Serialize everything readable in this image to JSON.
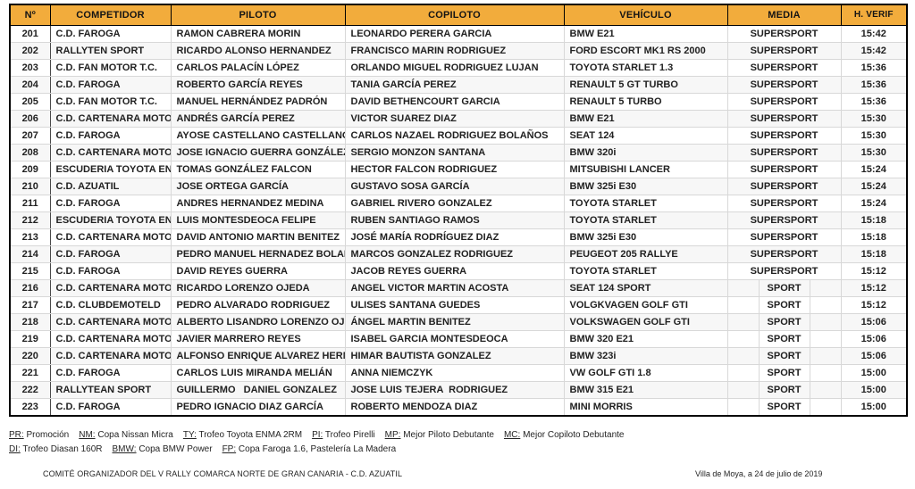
{
  "table": {
    "columns": [
      {
        "key": "num",
        "label": "Nº"
      },
      {
        "key": "competidor",
        "label": "COMPETIDOR"
      },
      {
        "key": "piloto",
        "label": "PILOTO"
      },
      {
        "key": "copiloto",
        "label": "COPILOTO"
      },
      {
        "key": "vehiculo",
        "label": "VEHÍCULO"
      },
      {
        "key": "media",
        "label": "MEDIA"
      },
      {
        "key": "h_verif",
        "label": "H. VERIF"
      }
    ],
    "rows": [
      {
        "num": "201",
        "competidor": "C.D. FAROGA",
        "piloto": "RAMON CABRERA MORIN",
        "copiloto": "LEONARDO PERERA GARCIA",
        "vehiculo": "BMW E21",
        "media": "SUPERSPORT",
        "h_verif": "15:42"
      },
      {
        "num": "202",
        "competidor": "RALLYTEN SPORT",
        "piloto": "RICARDO ALONSO HERNANDEZ",
        "copiloto": "FRANCISCO MARIN RODRIGUEZ",
        "vehiculo": "FORD ESCORT MK1 RS 2000",
        "media": "SUPERSPORT",
        "h_verif": "15:42"
      },
      {
        "num": "203",
        "competidor": "C.D. FAN MOTOR T.C.",
        "piloto": "CARLOS PALACÍN LÓPEZ",
        "copiloto": "ORLANDO MIGUEL RODRIGUEZ LUJAN",
        "vehiculo": "TOYOTA STARLET 1.3",
        "media": "SUPERSPORT",
        "h_verif": "15:36"
      },
      {
        "num": "204",
        "competidor": "C.D. FAROGA",
        "piloto": "ROBERTO GARCÍA REYES",
        "copiloto": "TANIA GARCÍA PEREZ",
        "vehiculo": "RENAULT 5 GT TURBO",
        "media": "SUPERSPORT",
        "h_verif": "15:36"
      },
      {
        "num": "205",
        "competidor": "C.D. FAN MOTOR T.C.",
        "piloto": "MANUEL HERNÁNDEZ PADRÓN",
        "copiloto": "DAVID BETHENCOURT GARCIA",
        "vehiculo": "RENAULT 5 TURBO",
        "media": "SUPERSPORT",
        "h_verif": "15:36"
      },
      {
        "num": "206",
        "competidor": "C.D. CARTENARA MOTOR",
        "piloto": "ANDRÉS GARCÍA PEREZ",
        "copiloto": "VICTOR SUAREZ DIAZ",
        "vehiculo": "BMW E21",
        "media": "SUPERSPORT",
        "h_verif": "15:30"
      },
      {
        "num": "207",
        "competidor": "C.D. FAROGA",
        "piloto": "AYOSE CASTELLANO CASTELLANO",
        "copiloto": "CARLOS NAZAEL RODRIGUEZ BOLAÑOS",
        "vehiculo": "SEAT 124",
        "media": "SUPERSPORT",
        "h_verif": "15:30"
      },
      {
        "num": "208",
        "competidor": "C.D. CARTENARA MOTOR",
        "piloto": "JOSE IGNACIO GUERRA GONZÁLEZ",
        "copiloto": "SERGIO MONZON SANTANA",
        "vehiculo": "BMW 320i",
        "media": "SUPERSPORT",
        "h_verif": "15:30"
      },
      {
        "num": "209",
        "competidor": "ESCUDERIA TOYOTA ENMA",
        "piloto": "TOMAS GONZÁLEZ FALCON",
        "copiloto": "HECTOR FALCON RODRIGUEZ",
        "vehiculo": "MITSUBISHI LANCER",
        "media": "SUPERSPORT",
        "h_verif": "15:24"
      },
      {
        "num": "210",
        "competidor": "C.D. AZUATIL",
        "piloto": "JOSE ORTEGA GARCÍA",
        "copiloto": "GUSTAVO SOSA GARCÍA",
        "vehiculo": "BMW 325i E30",
        "media": "SUPERSPORT",
        "h_verif": "15:24"
      },
      {
        "num": "211",
        "competidor": "C.D. FAROGA",
        "piloto": "ANDRES HERNANDEZ MEDINA",
        "copiloto": "GABRIEL RIVERO GONZALEZ",
        "vehiculo": "TOYOTA STARLET",
        "media": "SUPERSPORT",
        "h_verif": "15:24"
      },
      {
        "num": "212",
        "competidor": "ESCUDERIA TOYOTA ENMA",
        "piloto": "LUIS MONTESDEOCA FELIPE",
        "copiloto": "RUBEN SANTIAGO RAMOS",
        "vehiculo": "TOYOTA STARLET",
        "media": "SUPERSPORT",
        "h_verif": "15:18"
      },
      {
        "num": "213",
        "competidor": "C.D. CARTENARA MOTOR",
        "piloto": "DAVID ANTONIO MARTIN BENITEZ",
        "copiloto": "JOSÉ MARÍA RODRÍGUEZ DIAZ",
        "vehiculo": "BMW 325i E30",
        "media": "SUPERSPORT",
        "h_verif": "15:18"
      },
      {
        "num": "214",
        "competidor": "C.D. FAROGA",
        "piloto": "PEDRO MANUEL HERNADEZ BOLAÑOS",
        "copiloto": "MARCOS GONZALEZ RODRIGUEZ",
        "vehiculo": "PEUGEOT 205 RALLYE",
        "media": "SUPERSPORT",
        "h_verif": "15:18"
      },
      {
        "num": "215",
        "competidor": "C.D. FAROGA",
        "piloto": "DAVID REYES GUERRA",
        "copiloto": "JACOB REYES GUERRA",
        "vehiculo": "TOYOTA STARLET",
        "media": "SUPERSPORT",
        "h_verif": "15:12"
      },
      {
        "num": "216",
        "competidor": "C.D. CARTENARA MOTOR",
        "piloto": "RICARDO LORENZO OJEDA",
        "copiloto": "ANGEL VICTOR MARTIN ACOSTA",
        "vehiculo": "SEAT 124 SPORT",
        "media": "SPORT",
        "h_verif": "15:12"
      },
      {
        "num": "217",
        "competidor": "C.D. CLUBDEMOTELD",
        "piloto": "PEDRO ALVARADO RODRIGUEZ",
        "copiloto": "ULISES SANTANA GUEDES",
        "vehiculo": "VOLGKVAGEN GOLF GTI",
        "media": "SPORT",
        "h_verif": "15:12"
      },
      {
        "num": "218",
        "competidor": "C.D. CARTENARA MOTOR",
        "piloto": "ALBERTO LISANDRO LORENZO OJEDA",
        "copiloto": "ÁNGEL MARTIN BENITEZ",
        "vehiculo": "VOLKSWAGEN GOLF GTI",
        "media": "SPORT",
        "h_verif": "15:06"
      },
      {
        "num": "219",
        "competidor": "C.D. CARTENARA MOTOR",
        "piloto": "JAVIER MARRERO REYES",
        "copiloto": "ISABEL GARCIA MONTESDEOCA",
        "vehiculo": "BMW 320 E21",
        "media": "SPORT",
        "h_verif": "15:06"
      },
      {
        "num": "220",
        "competidor": "C.D. CARTENARA MOTOR",
        "piloto": "ALFONSO ENRIQUE ALVAREZ HERNANDEZ",
        "copiloto": "HIMAR BAUTISTA GONZALEZ",
        "vehiculo": "BMW 323i",
        "media": "SPORT",
        "h_verif": "15:06"
      },
      {
        "num": "221",
        "competidor": "C.D. FAROGA",
        "piloto": "CARLOS LUIS MIRANDA MELIÁN",
        "copiloto": "ANNA NIEMCZYK",
        "vehiculo": "VW GOLF GTI 1.8",
        "media": "SPORT",
        "h_verif": "15:00"
      },
      {
        "num": "222",
        "competidor": "RALLYTEAN SPORT",
        "piloto": "GUILLERMO   DANIEL GONZALEZ   DELGADO",
        "copiloto": "JOSE LUIS TEJERA  RODRIGUEZ",
        "vehiculo": "BMW 315 E21",
        "media": "SPORT",
        "h_verif": "15:00"
      },
      {
        "num": "223",
        "competidor": "C.D. FAROGA",
        "piloto": "PEDRO IGNACIO DIAZ GARCÍA",
        "copiloto": "ROBERTO MENDOZA DIAZ",
        "vehiculo": "MINI MORRIS",
        "media": "SPORT",
        "h_verif": "15:00"
      }
    ]
  },
  "legend": {
    "line1": [
      {
        "abbr": "PR:",
        "text": "Promoción"
      },
      {
        "abbr": "NM:",
        "text": "Copa Nissan Micra"
      },
      {
        "abbr": "TY:",
        "text": "Trofeo Toyota ENMA 2RM"
      },
      {
        "abbr": "PI:",
        "text": "Trofeo Pirelli"
      },
      {
        "abbr": "MP:",
        "text": "Mejor Piloto Debutante"
      },
      {
        "abbr": "MC:",
        "text": "Mejor Copiloto Debutante"
      }
    ],
    "line2": [
      {
        "abbr": "DI:",
        "text": "Trofeo Diasan 160R"
      },
      {
        "abbr": "BMW:",
        "text": "Copa BMW Power"
      },
      {
        "abbr": "FP:",
        "text": "Copa Faroga 1.6, Pastelería La Madera"
      }
    ]
  },
  "footer": {
    "committee": "COMITÉ ORGANIZADOR DEL V RALLY COMARCA NORTE DE GRAN CANARIA - C.D. AZUATIL",
    "place_date": "Villa de Moya, a 24 de julio de 2019"
  },
  "colors": {
    "header_bg": "#F2AC3C",
    "border_dark": "#000000",
    "border_light": "#d8d8d8",
    "text": "#212121"
  }
}
